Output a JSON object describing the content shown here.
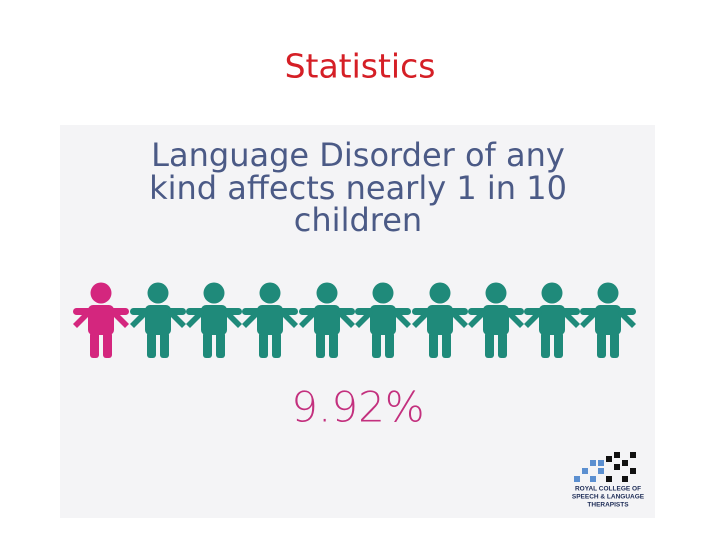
{
  "header": {
    "title": "Statistics"
  },
  "infographic": {
    "heading_lines": [
      "Language Disorder of any",
      "kind affects nearly 1 in 10",
      "children"
    ],
    "percentage": "9.92%",
    "logo_lines": [
      "ROYAL COLLEGE OF",
      "SPEECH & LANGUAGE",
      "THERAPISTS"
    ]
  }
}
